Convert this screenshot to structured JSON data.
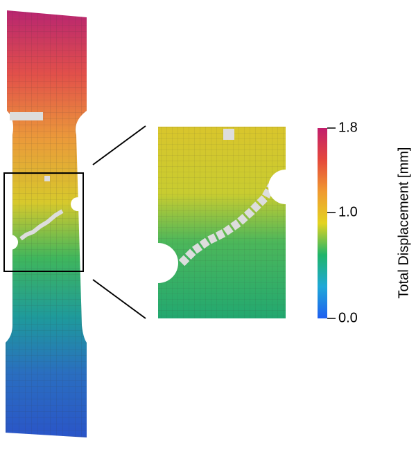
{
  "chart_data": {
    "type": "contour",
    "colorbar_label": "Total Displacement [mm]",
    "clim": [
      0,
      1.8
    ],
    "cticks": [
      {
        "value": 0,
        "label": "0.0"
      },
      {
        "value": 1,
        "label": "1.0"
      },
      {
        "value": 1.8,
        "label": "1.8"
      }
    ],
    "colormap": [
      "#1f5ff0",
      "#1fa8d8",
      "#1fb56a",
      "#e3d320",
      "#f09a30",
      "#e5483c",
      "#c21e6c"
    ]
  }
}
